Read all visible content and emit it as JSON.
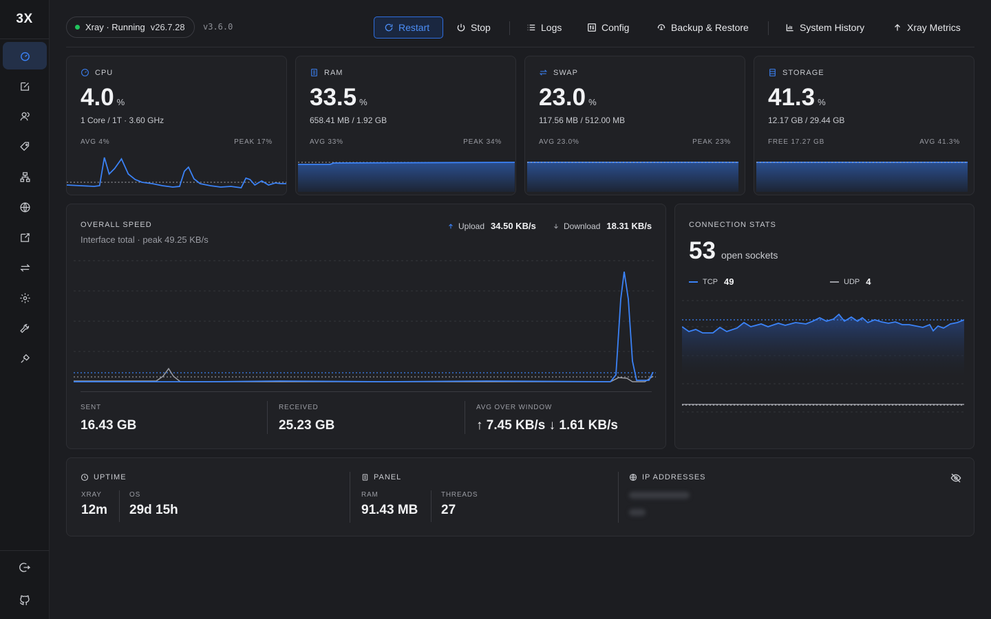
{
  "app": {
    "logo": "3X"
  },
  "sidebar": {
    "items": [
      {
        "icon": "dashboard-icon"
      },
      {
        "icon": "edit-icon"
      },
      {
        "icon": "users-icon"
      },
      {
        "icon": "tag-icon"
      },
      {
        "icon": "network-icon"
      },
      {
        "icon": "globe-icon"
      },
      {
        "icon": "external-link-icon"
      },
      {
        "icon": "transfer-icon"
      },
      {
        "icon": "gear-icon"
      },
      {
        "icon": "wrench-icon"
      },
      {
        "icon": "plug-icon"
      }
    ],
    "bottom": [
      {
        "icon": "logout-icon"
      },
      {
        "icon": "github-icon"
      }
    ]
  },
  "topbar": {
    "status": "Xray · Running",
    "xray_version": "v26.7.28",
    "panel_version": "v3.6.0",
    "buttons": {
      "restart": "Restart",
      "stop": "Stop",
      "logs": "Logs",
      "config": "Config",
      "backup": "Backup & Restore",
      "history": "System History",
      "metrics": "Xray Metrics"
    }
  },
  "stats": {
    "cpu": {
      "label": "CPU",
      "value": "4.0",
      "unit": "%",
      "sub": "1 Core / 1T · 3.60 GHz",
      "left": "AVG 4%",
      "right": "PEAK 17%"
    },
    "ram": {
      "label": "RAM",
      "value": "33.5",
      "unit": "%",
      "sub": "658.41 MB / 1.92 GB",
      "left": "AVG 33%",
      "right": "PEAK 34%"
    },
    "swap": {
      "label": "SWAP",
      "value": "23.0",
      "unit": "%",
      "sub": "117.56 MB / 512.00 MB",
      "left": "AVG 23.0%",
      "right": "PEAK 23%"
    },
    "storage": {
      "label": "STORAGE",
      "value": "41.3",
      "unit": "%",
      "sub": "12.17 GB / 29.44 GB",
      "left": "FREE 17.27 GB",
      "right": "AVG 41.3%"
    }
  },
  "speed": {
    "title": "OVERALL SPEED",
    "subtitle": "Interface total · peak 49.25 KB/s",
    "upload_label": "Upload",
    "upload_value": "34.50 KB/s",
    "download_label": "Download",
    "download_value": "18.31 KB/s",
    "sent_label": "SENT",
    "sent_value": "16.43 GB",
    "received_label": "RECEIVED",
    "received_value": "25.23 GB",
    "avg_label": "AVG OVER WINDOW",
    "avg_value": "↑ 7.45 KB/s ↓ 1.61 KB/s"
  },
  "connections": {
    "title": "CONNECTION STATS",
    "count": "53",
    "count_label": "open sockets",
    "tcp_label": "TCP",
    "tcp_value": "49",
    "udp_label": "UDP",
    "udp_value": "4"
  },
  "info": {
    "uptime_title": "UPTIME",
    "xray_label": "XRAY",
    "xray_value": "12m",
    "os_label": "OS",
    "os_value": "29d 15h",
    "panel_title": "PANEL",
    "ram_label": "RAM",
    "ram_value": "91.43 MB",
    "threads_label": "THREADS",
    "threads_value": "27",
    "ip_title": "IP ADDRESSES"
  },
  "colors": {
    "accent": "#3b82f6",
    "running": "#21c45d",
    "background": "#1c1d21",
    "card": "#202125"
  }
}
